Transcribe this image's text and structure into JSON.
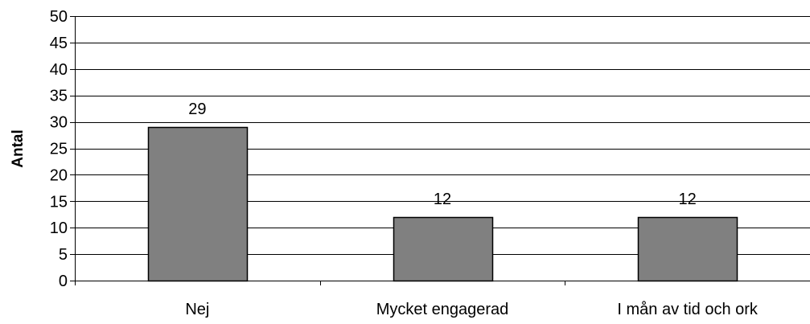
{
  "chart_data": {
    "type": "bar",
    "title": "",
    "xlabel": "",
    "ylabel": "Antal",
    "categories": [
      "Nej",
      "Mycket engagerad",
      "I mån av tid och ork"
    ],
    "values": [
      29,
      12,
      12
    ],
    "data_labels": [
      "29",
      "12",
      "12"
    ],
    "ylim": [
      0,
      50
    ],
    "yticks": [
      0,
      5,
      10,
      15,
      20,
      25,
      30,
      35,
      40,
      45,
      50
    ],
    "grid": true,
    "legend": "none",
    "colors": {
      "bar_fill": "#808080",
      "bar_stroke": "#000000",
      "grid": "#000000",
      "axis": "#000000",
      "background": "#ffffff"
    }
  }
}
